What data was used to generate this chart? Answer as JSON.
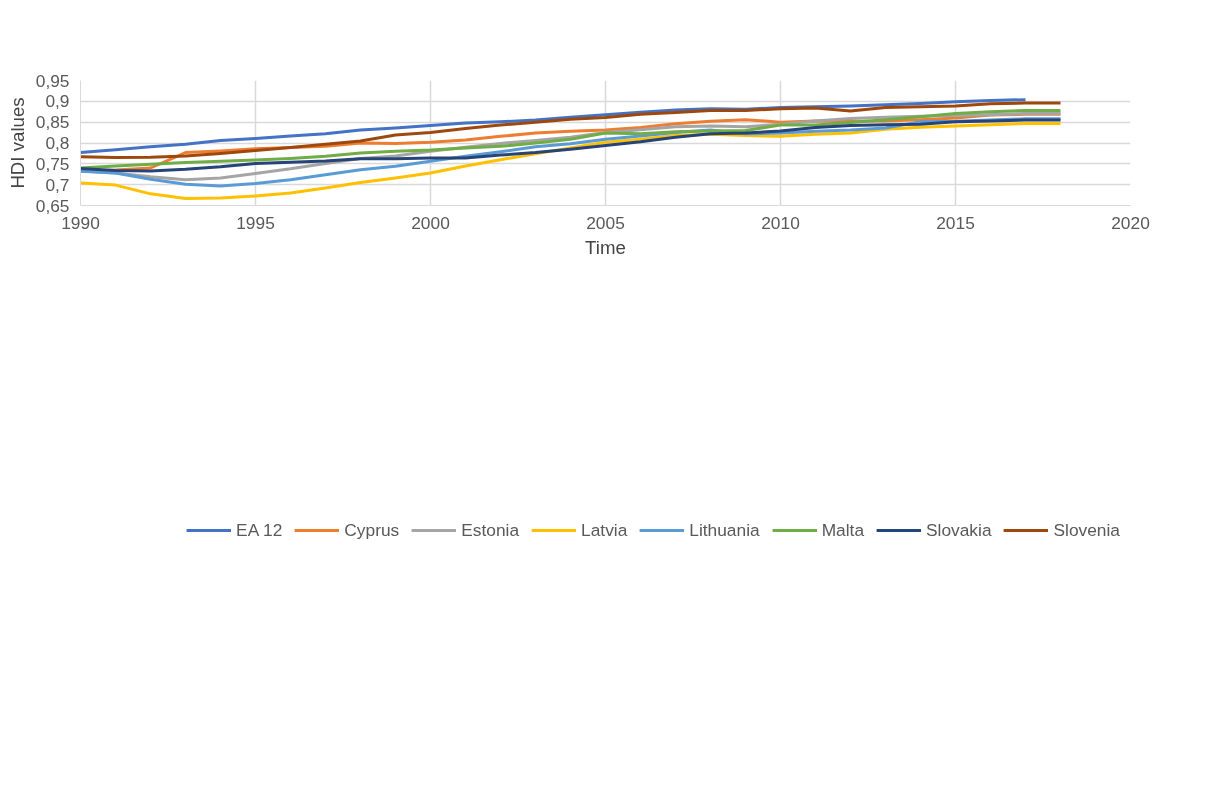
{
  "chart_data": {
    "type": "line",
    "xlabel": "Time",
    "ylabel": "HDI values",
    "x": [
      1990,
      1991,
      1992,
      1993,
      1994,
      1995,
      1996,
      1997,
      1998,
      1999,
      2000,
      2001,
      2002,
      2003,
      2004,
      2005,
      2006,
      2007,
      2008,
      2009,
      2010,
      2011,
      2012,
      2013,
      2014,
      2015,
      2016,
      2017,
      2018
    ],
    "xlim": [
      1990,
      2020
    ],
    "xticks": [
      1990,
      1995,
      2000,
      2005,
      2010,
      2015,
      2020
    ],
    "ylim": [
      0.65,
      0.95
    ],
    "yticks": [
      {
        "value": 0.65,
        "label": "0,65"
      },
      {
        "value": 0.7,
        "label": "0,7"
      },
      {
        "value": 0.75,
        "label": "0,75"
      },
      {
        "value": 0.8,
        "label": "0,8"
      },
      {
        "value": 0.85,
        "label": "0,85"
      },
      {
        "value": 0.9,
        "label": "0,9"
      },
      {
        "value": 0.95,
        "label": "0,95"
      }
    ],
    "grid": true,
    "legend": "bottom",
    "marker": "none",
    "line_style": "solid",
    "series": [
      {
        "name": "EA 12",
        "color": "#4472c4",
        "values": [
          0.777,
          0.784,
          0.791,
          0.797,
          0.806,
          0.811,
          0.817,
          0.822,
          0.831,
          0.836,
          0.842,
          0.848,
          0.851,
          0.855,
          0.862,
          0.868,
          0.874,
          0.879,
          0.882,
          0.881,
          0.885,
          0.887,
          0.889,
          0.892,
          0.895,
          0.899,
          0.902,
          0.904,
          null
        ]
      },
      {
        "name": "Cyprus",
        "color": "#ed7d31",
        "values": [
          0.732,
          0.735,
          0.74,
          0.777,
          0.781,
          0.786,
          0.789,
          0.792,
          0.8,
          0.799,
          0.802,
          0.807,
          0.816,
          0.824,
          0.828,
          0.831,
          0.837,
          0.846,
          0.852,
          0.856,
          0.85,
          0.853,
          0.852,
          0.853,
          0.856,
          0.86,
          0.867,
          0.869,
          0.869
        ]
      },
      {
        "name": "Estonia",
        "color": "#a5a5a5",
        "values": [
          0.733,
          0.728,
          0.719,
          0.712,
          0.716,
          0.727,
          0.738,
          0.751,
          0.763,
          0.769,
          0.78,
          0.79,
          0.799,
          0.806,
          0.814,
          0.825,
          0.832,
          0.839,
          0.841,
          0.839,
          0.845,
          0.853,
          0.859,
          0.862,
          0.864,
          0.866,
          0.868,
          0.871,
          0.871
        ]
      },
      {
        "name": "Latvia",
        "color": "#ffc000",
        "values": [
          0.704,
          0.699,
          0.678,
          0.667,
          0.668,
          0.673,
          0.68,
          0.692,
          0.705,
          0.716,
          0.728,
          0.745,
          0.76,
          0.774,
          0.788,
          0.802,
          0.809,
          0.818,
          0.821,
          0.818,
          0.816,
          0.821,
          0.824,
          0.833,
          0.838,
          0.841,
          0.844,
          0.847,
          0.847
        ]
      },
      {
        "name": "Lithuania",
        "color": "#5b9bd5",
        "values": [
          0.732,
          0.728,
          0.713,
          0.701,
          0.697,
          0.703,
          0.712,
          0.724,
          0.736,
          0.744,
          0.756,
          0.768,
          0.779,
          0.791,
          0.798,
          0.809,
          0.817,
          0.825,
          0.831,
          0.822,
          0.824,
          0.828,
          0.831,
          0.836,
          0.851,
          0.852,
          0.855,
          0.858,
          0.858
        ]
      },
      {
        "name": "Malta",
        "color": "#70ad47",
        "values": [
          0.74,
          0.745,
          0.749,
          0.753,
          0.756,
          0.759,
          0.763,
          0.768,
          0.776,
          0.78,
          0.783,
          0.788,
          0.792,
          0.8,
          0.809,
          0.824,
          0.822,
          0.827,
          0.829,
          0.83,
          0.843,
          0.843,
          0.849,
          0.856,
          0.863,
          0.871,
          0.875,
          0.878,
          0.878
        ]
      },
      {
        "name": "Slovakia",
        "color": "#264478",
        "values": [
          0.739,
          0.734,
          0.733,
          0.737,
          0.743,
          0.751,
          0.754,
          0.757,
          0.762,
          0.762,
          0.764,
          0.764,
          0.771,
          0.777,
          0.785,
          0.794,
          0.803,
          0.814,
          0.822,
          0.824,
          0.829,
          0.837,
          0.842,
          0.844,
          0.845,
          0.851,
          0.853,
          0.855,
          0.855
        ]
      },
      {
        "name": "Slovenia",
        "color": "#9e480e",
        "values": [
          0.767,
          0.765,
          0.766,
          0.769,
          0.775,
          0.782,
          0.789,
          0.797,
          0.805,
          0.819,
          0.825,
          0.835,
          0.843,
          0.85,
          0.857,
          0.861,
          0.869,
          0.873,
          0.878,
          0.878,
          0.882,
          0.884,
          0.877,
          0.885,
          0.887,
          0.889,
          0.894,
          0.896,
          0.896
        ]
      }
    ]
  }
}
